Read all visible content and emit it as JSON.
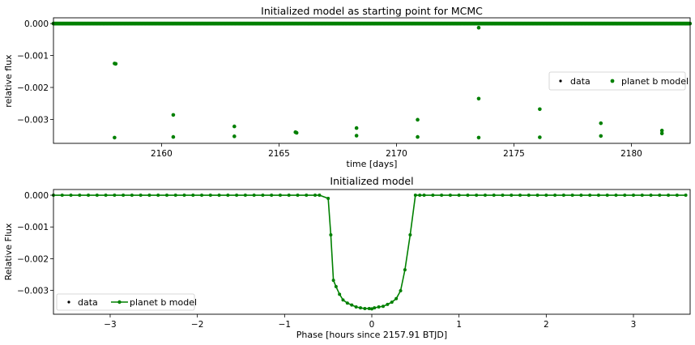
{
  "chart_data": [
    {
      "type": "scatter",
      "title": "Initialized model as starting point for MCMC",
      "xlabel": "time [days]",
      "ylabel": "relative flux",
      "xlim": [
        2155.4,
        2182.5
      ],
      "ylim": [
        -0.00375,
        0.00018
      ],
      "xticks": [
        2160,
        2165,
        2170,
        2175,
        2180
      ],
      "xtick_labels": [
        "2160",
        "2165",
        "2170",
        "2175",
        "2180"
      ],
      "yticks": [
        0.0,
        -0.001,
        -0.002,
        -0.003
      ],
      "ytick_labels": [
        "0.000",
        "−0.001",
        "−0.002",
        "−0.003"
      ],
      "grid": false,
      "legend": {
        "position": "right",
        "entries": [
          "data",
          "planet b model"
        ]
      },
      "series": [
        {
          "name": "data",
          "color": "#000000",
          "marker": "point",
          "x": [],
          "y": []
        },
        {
          "name": "planet b model",
          "color": "#008000",
          "marker": "dot",
          "baseline": 0.0,
          "baseline_x_range": [
            2155.4,
            2182.5
          ],
          "x": [
            2158.0,
            2158.05,
            2158.0,
            2160.5,
            2160.5,
            2163.1,
            2163.1,
            2165.7,
            2165.75,
            2168.3,
            2168.3,
            2170.9,
            2170.9,
            2173.5,
            2173.5,
            2173.5,
            2176.1,
            2176.1,
            2178.7,
            2178.7,
            2181.3,
            2181.3
          ],
          "y": [
            -0.00125,
            -0.00126,
            -0.00357,
            -0.00286,
            -0.00355,
            -0.00322,
            -0.00353,
            -0.0034,
            -0.00342,
            -0.00327,
            -0.00351,
            -0.00301,
            -0.00355,
            -0.00013,
            -0.00235,
            -0.00357,
            -0.00268,
            -0.00356,
            -0.00312,
            -0.00352,
            -0.00335,
            -0.00344
          ]
        }
      ]
    },
    {
      "type": "line",
      "title": "Initialized model",
      "xlabel": "Phase [hours since 2157.91 BTJD]",
      "ylabel": "Relative Flux",
      "xlim": [
        -3.65,
        3.65
      ],
      "ylim": [
        -0.00375,
        0.00018
      ],
      "xticks": [
        -3,
        -2,
        -1,
        0,
        1,
        2,
        3
      ],
      "xtick_labels": [
        "−3",
        "−2",
        "−1",
        "0",
        "1",
        "2",
        "3"
      ],
      "yticks": [
        0.0,
        -0.001,
        -0.002,
        -0.003
      ],
      "ytick_labels": [
        "0.000",
        "−0.001",
        "−0.002",
        "−0.003"
      ],
      "grid": false,
      "legend": {
        "position": "lower-left",
        "entries": [
          "data",
          "planet b model"
        ]
      },
      "series": [
        {
          "name": "data",
          "color": "#000000",
          "marker": "point",
          "x": [],
          "y": []
        },
        {
          "name": "planet b model",
          "color": "#008000",
          "marker": "dot-line",
          "x": [
            -0.6,
            -0.5,
            -0.47,
            -0.44,
            -0.41,
            -0.37,
            -0.33,
            -0.28,
            -0.23,
            -0.18,
            -0.13,
            -0.08,
            -0.03,
            0.0,
            0.03,
            0.08,
            0.13,
            0.18,
            0.23,
            0.28,
            0.33,
            0.38,
            0.44,
            0.5,
            0.55
          ],
          "y": [
            0.0,
            -0.0001,
            -0.00125,
            -0.00268,
            -0.00288,
            -0.00312,
            -0.0033,
            -0.0034,
            -0.00346,
            -0.00352,
            -0.00355,
            -0.00357,
            -0.00357,
            -0.00358,
            -0.00355,
            -0.00352,
            -0.0035,
            -0.00344,
            -0.00337,
            -0.00326,
            -0.00301,
            -0.00235,
            -0.00125,
            0.0,
            0.0
          ],
          "flat_x": [
            -3.65,
            -3.55,
            -3.45,
            -3.35,
            -3.25,
            -3.15,
            -3.05,
            -2.95,
            -2.85,
            -2.75,
            -2.65,
            -2.55,
            -2.45,
            -2.35,
            -2.25,
            -2.15,
            -2.05,
            -1.95,
            -1.85,
            -1.75,
            -1.65,
            -1.55,
            -1.45,
            -1.35,
            -1.25,
            -1.15,
            -1.05,
            -0.95,
            -0.85,
            -0.75,
            -0.65,
            0.6,
            0.7,
            0.8,
            0.9,
            1.0,
            1.1,
            1.2,
            1.3,
            1.4,
            1.5,
            1.6,
            1.7,
            1.8,
            1.9,
            2.0,
            2.1,
            2.2,
            2.3,
            2.4,
            2.5,
            2.6,
            2.7,
            2.8,
            2.9,
            3.0,
            3.1,
            3.2,
            3.3,
            3.4,
            3.5,
            3.6
          ]
        }
      ]
    }
  ]
}
